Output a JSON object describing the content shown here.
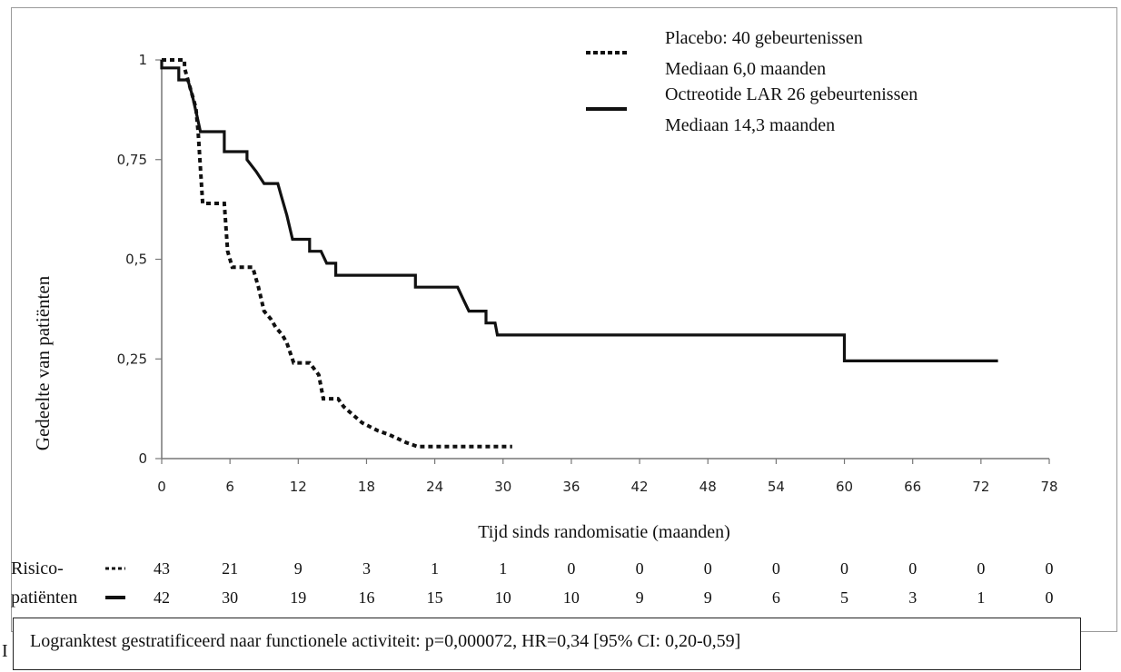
{
  "chart_data": {
    "type": "line",
    "step": true,
    "xlabel": "Tijd sinds randomisatie (maanden)",
    "ylabel": "Gedeelte van patiënten",
    "xlim": [
      0,
      78
    ],
    "ylim": [
      0,
      1
    ],
    "xticks": [
      "0",
      "6",
      "12",
      "18",
      "24",
      "30",
      "36",
      "42",
      "48",
      "54",
      "60",
      "66",
      "72",
      "78"
    ],
    "yticks": [
      "0",
      "0,25",
      "0,5",
      "0,75",
      "1"
    ],
    "grid": false,
    "legend_position": "top-right",
    "series": [
      {
        "name": "Placebo: 40 gebeurtenissen",
        "median_label": "Mediaan 6,0 maanden",
        "style": "dotted",
        "color": "#111111",
        "points": [
          [
            0,
            1
          ],
          [
            2,
            1
          ],
          [
            2,
            0.98
          ],
          [
            3,
            0.88
          ],
          [
            3.2,
            0.82
          ],
          [
            3.6,
            0.64
          ],
          [
            5,
            0.64
          ],
          [
            5.5,
            0.64
          ],
          [
            5.8,
            0.52
          ],
          [
            6.2,
            0.48
          ],
          [
            8,
            0.48
          ],
          [
            8.5,
            0.43
          ],
          [
            9,
            0.37
          ],
          [
            9.6,
            0.35
          ],
          [
            10,
            0.33
          ],
          [
            10.6,
            0.31
          ],
          [
            11,
            0.29
          ],
          [
            11.6,
            0.24
          ],
          [
            13,
            0.24
          ],
          [
            13.8,
            0.21
          ],
          [
            14.2,
            0.15
          ],
          [
            15.5,
            0.15
          ],
          [
            16,
            0.13
          ],
          [
            16.8,
            0.11
          ],
          [
            17.6,
            0.09
          ],
          [
            19,
            0.07
          ],
          [
            20,
            0.06
          ],
          [
            21.5,
            0.04
          ],
          [
            22.5,
            0.03
          ],
          [
            30.8,
            0.03
          ]
        ]
      },
      {
        "name": "Octreotide LAR 26 gebeurtenissen",
        "median_label": "Mediaan 14,3 maanden",
        "style": "solid",
        "color": "#111111",
        "points": [
          [
            0,
            1
          ],
          [
            0,
            0.98
          ],
          [
            1.5,
            0.98
          ],
          [
            1.5,
            0.95
          ],
          [
            2.3,
            0.95
          ],
          [
            2.7,
            0.91
          ],
          [
            3.1,
            0.86
          ],
          [
            3.4,
            0.82
          ],
          [
            5.5,
            0.82
          ],
          [
            5.5,
            0.77
          ],
          [
            7.5,
            0.77
          ],
          [
            7.5,
            0.75
          ],
          [
            8.3,
            0.72
          ],
          [
            9,
            0.69
          ],
          [
            10.2,
            0.69
          ],
          [
            10.5,
            0.66
          ],
          [
            11,
            0.61
          ],
          [
            11.5,
            0.55
          ],
          [
            13,
            0.55
          ],
          [
            13,
            0.52
          ],
          [
            14,
            0.52
          ],
          [
            14.5,
            0.49
          ],
          [
            15.3,
            0.49
          ],
          [
            15.3,
            0.46
          ],
          [
            22.3,
            0.46
          ],
          [
            22.3,
            0.43
          ],
          [
            26,
            0.43
          ],
          [
            26.5,
            0.4
          ],
          [
            27,
            0.37
          ],
          [
            28.5,
            0.37
          ],
          [
            28.5,
            0.34
          ],
          [
            29.3,
            0.34
          ],
          [
            29.5,
            0.31
          ],
          [
            60,
            0.31
          ],
          [
            60,
            0.245
          ],
          [
            73.5,
            0.245
          ]
        ]
      }
    ],
    "risk_table": {
      "label_line1": "Risico-",
      "label_line2": "patiënten",
      "times": [
        0,
        6,
        12,
        18,
        24,
        30,
        36,
        42,
        48,
        54,
        60,
        66,
        72,
        78
      ],
      "rows": [
        {
          "style": "dotted",
          "values": [
            "43",
            "21",
            "9",
            "3",
            "1",
            "1",
            "0",
            "0",
            "0",
            "0",
            "0",
            "0",
            "0",
            "0"
          ]
        },
        {
          "style": "solid",
          "values": [
            "42",
            "30",
            "19",
            "16",
            "15",
            "10",
            "10",
            "9",
            "9",
            "6",
            "5",
            "3",
            "1",
            "0"
          ]
        }
      ]
    }
  },
  "footnote": {
    "logrank_text": "Logranktest gestratificeerd naar functionele activiteit: p=0,000072, HR=0,34 [95% CI: 0,20-0,59]",
    "stray_char": "I"
  }
}
